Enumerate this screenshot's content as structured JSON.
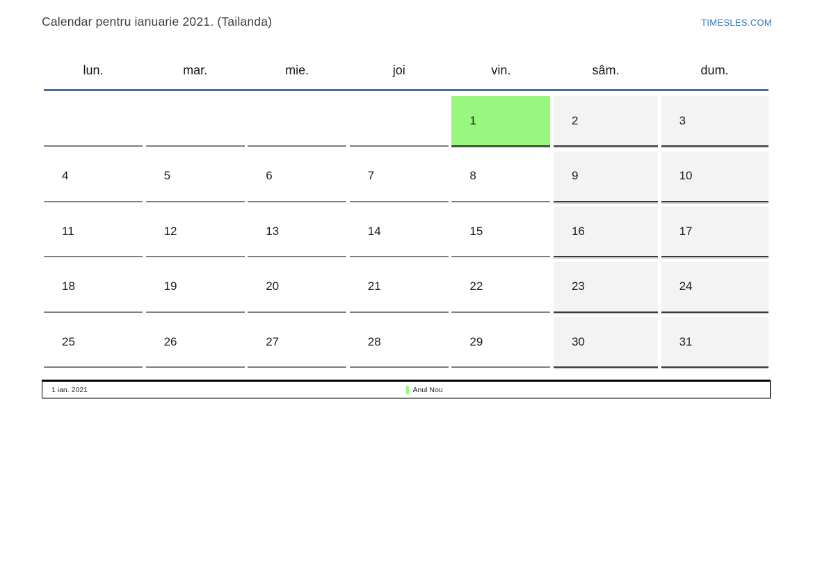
{
  "header": {
    "title": "Calendar pentru ianuarie 2021. (Tailanda)",
    "brand": "TIMESLES.COM"
  },
  "calendar": {
    "weekday_headers": [
      "lun.",
      "mar.",
      "mie.",
      "joi",
      "vin.",
      "sâm.",
      "dum."
    ],
    "weekend_columns": [
      5,
      6
    ],
    "weeks": [
      [
        "",
        "",
        "",
        "",
        "1",
        "2",
        "3"
      ],
      [
        "4",
        "5",
        "6",
        "7",
        "8",
        "9",
        "10"
      ],
      [
        "11",
        "12",
        "13",
        "14",
        "15",
        "16",
        "17"
      ],
      [
        "18",
        "19",
        "20",
        "21",
        "22",
        "23",
        "24"
      ],
      [
        "25",
        "26",
        "27",
        "28",
        "29",
        "30",
        "31"
      ]
    ],
    "highlighted_day": "1"
  },
  "legend": {
    "date": "1 ian. 2021",
    "event": "Anul Nou"
  },
  "colors": {
    "brand_blue": "#2e78b8",
    "divider_blue": "#4a6a99",
    "highlight_green": "#97f77f",
    "weekend_gray": "#f3f3f3"
  }
}
